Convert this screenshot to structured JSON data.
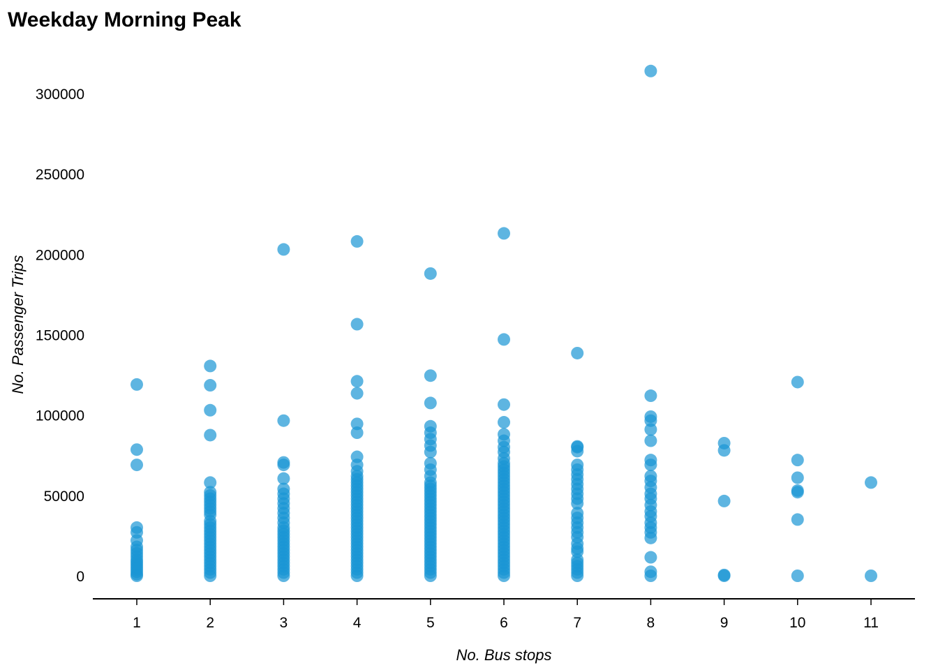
{
  "chart_data": {
    "type": "scatter",
    "title": "Weekday Morning Peak",
    "xlabel": "No. Bus stops",
    "ylabel": "No. Passenger Trips",
    "x_ticks": [
      1,
      2,
      3,
      4,
      5,
      6,
      7,
      8,
      9,
      10,
      11
    ],
    "y_ticks": [
      0,
      50000,
      100000,
      150000,
      200000,
      250000,
      300000
    ],
    "xlim": [
      0.4,
      11.6
    ],
    "ylim": [
      -14000,
      322000
    ],
    "grid": false,
    "point_color": "#1a96d4",
    "series": [
      {
        "points": [
          [
            1,
            0
          ],
          [
            1,
            1000
          ],
          [
            1,
            2500
          ],
          [
            1,
            4000
          ],
          [
            1,
            5500
          ],
          [
            1,
            7000
          ],
          [
            1,
            8500
          ],
          [
            1,
            10000
          ],
          [
            1,
            12000
          ],
          [
            1,
            14000
          ],
          [
            1,
            16000
          ],
          [
            1,
            18000
          ],
          [
            1,
            22000
          ],
          [
            1,
            27000
          ],
          [
            1,
            30000
          ],
          [
            1,
            69000
          ],
          [
            1,
            78500
          ],
          [
            1,
            119000
          ],
          [
            2,
            0
          ],
          [
            2,
            2000
          ],
          [
            2,
            4000
          ],
          [
            2,
            6000
          ],
          [
            2,
            8000
          ],
          [
            2,
            10000
          ],
          [
            2,
            12000
          ],
          [
            2,
            14000
          ],
          [
            2,
            16000
          ],
          [
            2,
            18000
          ],
          [
            2,
            20000
          ],
          [
            2,
            22000
          ],
          [
            2,
            24000
          ],
          [
            2,
            26000
          ],
          [
            2,
            28000
          ],
          [
            2,
            30000
          ],
          [
            2,
            32000
          ],
          [
            2,
            34000
          ],
          [
            2,
            38000
          ],
          [
            2,
            40000
          ],
          [
            2,
            42000
          ],
          [
            2,
            44000
          ],
          [
            2,
            46000
          ],
          [
            2,
            48000
          ],
          [
            2,
            50000
          ],
          [
            2,
            52000
          ],
          [
            2,
            58000
          ],
          [
            2,
            87500
          ],
          [
            2,
            103000
          ],
          [
            2,
            118500
          ],
          [
            2,
            130500
          ],
          [
            3,
            0
          ],
          [
            3,
            2000
          ],
          [
            3,
            4000
          ],
          [
            3,
            6000
          ],
          [
            3,
            8000
          ],
          [
            3,
            10000
          ],
          [
            3,
            12000
          ],
          [
            3,
            14000
          ],
          [
            3,
            16000
          ],
          [
            3,
            18000
          ],
          [
            3,
            20000
          ],
          [
            3,
            22000
          ],
          [
            3,
            24000
          ],
          [
            3,
            26000
          ],
          [
            3,
            28000
          ],
          [
            3,
            30000
          ],
          [
            3,
            33000
          ],
          [
            3,
            36000
          ],
          [
            3,
            39000
          ],
          [
            3,
            42000
          ],
          [
            3,
            45000
          ],
          [
            3,
            48000
          ],
          [
            3,
            51000
          ],
          [
            3,
            54000
          ],
          [
            3,
            60500
          ],
          [
            3,
            69000
          ],
          [
            3,
            70500
          ],
          [
            3,
            96500
          ],
          [
            3,
            203000
          ],
          [
            4,
            0
          ],
          [
            4,
            2000
          ],
          [
            4,
            4000
          ],
          [
            4,
            6000
          ],
          [
            4,
            8000
          ],
          [
            4,
            10000
          ],
          [
            4,
            12000
          ],
          [
            4,
            14000
          ],
          [
            4,
            16000
          ],
          [
            4,
            18000
          ],
          [
            4,
            20000
          ],
          [
            4,
            22000
          ],
          [
            4,
            24000
          ],
          [
            4,
            26000
          ],
          [
            4,
            28000
          ],
          [
            4,
            30000
          ],
          [
            4,
            32000
          ],
          [
            4,
            34000
          ],
          [
            4,
            36000
          ],
          [
            4,
            38000
          ],
          [
            4,
            40000
          ],
          [
            4,
            42000
          ],
          [
            4,
            44000
          ],
          [
            4,
            46000
          ],
          [
            4,
            48000
          ],
          [
            4,
            50000
          ],
          [
            4,
            52000
          ],
          [
            4,
            54000
          ],
          [
            4,
            56000
          ],
          [
            4,
            58000
          ],
          [
            4,
            60000
          ],
          [
            4,
            62000
          ],
          [
            4,
            65000
          ],
          [
            4,
            69000
          ],
          [
            4,
            74000
          ],
          [
            4,
            89000
          ],
          [
            4,
            94500
          ],
          [
            4,
            113500
          ],
          [
            4,
            121000
          ],
          [
            4,
            156500
          ],
          [
            4,
            208000
          ],
          [
            5,
            0
          ],
          [
            5,
            2000
          ],
          [
            5,
            4000
          ],
          [
            5,
            6000
          ],
          [
            5,
            8000
          ],
          [
            5,
            10000
          ],
          [
            5,
            12000
          ],
          [
            5,
            14000
          ],
          [
            5,
            16000
          ],
          [
            5,
            18000
          ],
          [
            5,
            20000
          ],
          [
            5,
            22000
          ],
          [
            5,
            24000
          ],
          [
            5,
            26000
          ],
          [
            5,
            28000
          ],
          [
            5,
            30000
          ],
          [
            5,
            32000
          ],
          [
            5,
            34000
          ],
          [
            5,
            36000
          ],
          [
            5,
            38000
          ],
          [
            5,
            40000
          ],
          [
            5,
            42000
          ],
          [
            5,
            44000
          ],
          [
            5,
            46000
          ],
          [
            5,
            48000
          ],
          [
            5,
            50000
          ],
          [
            5,
            52000
          ],
          [
            5,
            54000
          ],
          [
            5,
            56000
          ],
          [
            5,
            58000
          ],
          [
            5,
            62000
          ],
          [
            5,
            66000
          ],
          [
            5,
            70000
          ],
          [
            5,
            77000
          ],
          [
            5,
            81000
          ],
          [
            5,
            85000
          ],
          [
            5,
            89000
          ],
          [
            5,
            93000
          ],
          [
            5,
            107500
          ],
          [
            5,
            124500
          ],
          [
            5,
            188000
          ],
          [
            6,
            0
          ],
          [
            6,
            2000
          ],
          [
            6,
            4000
          ],
          [
            6,
            6000
          ],
          [
            6,
            8000
          ],
          [
            6,
            10000
          ],
          [
            6,
            12000
          ],
          [
            6,
            14000
          ],
          [
            6,
            16000
          ],
          [
            6,
            18000
          ],
          [
            6,
            20000
          ],
          [
            6,
            22000
          ],
          [
            6,
            24000
          ],
          [
            6,
            26000
          ],
          [
            6,
            28000
          ],
          [
            6,
            30000
          ],
          [
            6,
            32000
          ],
          [
            6,
            34000
          ],
          [
            6,
            36000
          ],
          [
            6,
            38000
          ],
          [
            6,
            40000
          ],
          [
            6,
            42000
          ],
          [
            6,
            44000
          ],
          [
            6,
            46000
          ],
          [
            6,
            48000
          ],
          [
            6,
            50000
          ],
          [
            6,
            52000
          ],
          [
            6,
            54000
          ],
          [
            6,
            56000
          ],
          [
            6,
            58000
          ],
          [
            6,
            60000
          ],
          [
            6,
            62000
          ],
          [
            6,
            64000
          ],
          [
            6,
            66000
          ],
          [
            6,
            68000
          ],
          [
            6,
            70000
          ],
          [
            6,
            73000
          ],
          [
            6,
            77000
          ],
          [
            6,
            80000
          ],
          [
            6,
            84000
          ],
          [
            6,
            88000
          ],
          [
            6,
            95500
          ],
          [
            6,
            106500
          ],
          [
            6,
            147000
          ],
          [
            6,
            213000
          ],
          [
            7,
            0
          ],
          [
            7,
            2000
          ],
          [
            7,
            4000
          ],
          [
            7,
            6000
          ],
          [
            7,
            8000
          ],
          [
            7,
            10000
          ],
          [
            7,
            15000
          ],
          [
            7,
            17000
          ],
          [
            7,
            20000
          ],
          [
            7,
            24000
          ],
          [
            7,
            27000
          ],
          [
            7,
            30000
          ],
          [
            7,
            33000
          ],
          [
            7,
            36000
          ],
          [
            7,
            39000
          ],
          [
            7,
            45000
          ],
          [
            7,
            48000
          ],
          [
            7,
            51000
          ],
          [
            7,
            54000
          ],
          [
            7,
            57000
          ],
          [
            7,
            60000
          ],
          [
            7,
            63000
          ],
          [
            7,
            66000
          ],
          [
            7,
            69000
          ],
          [
            7,
            77500
          ],
          [
            7,
            80000
          ],
          [
            7,
            80500
          ],
          [
            7,
            138500
          ],
          [
            8,
            0
          ],
          [
            8,
            2500
          ],
          [
            8,
            11500
          ],
          [
            8,
            23500
          ],
          [
            8,
            27000
          ],
          [
            8,
            30000
          ],
          [
            8,
            33000
          ],
          [
            8,
            37000
          ],
          [
            8,
            40000
          ],
          [
            8,
            44000
          ],
          [
            8,
            48000
          ],
          [
            8,
            51000
          ],
          [
            8,
            55000
          ],
          [
            8,
            59000
          ],
          [
            8,
            62000
          ],
          [
            8,
            69000
          ],
          [
            8,
            72000
          ],
          [
            8,
            84000
          ],
          [
            8,
            91000
          ],
          [
            8,
            96500
          ],
          [
            8,
            99000
          ],
          [
            8,
            112000
          ],
          [
            8,
            314000
          ],
          [
            9,
            0
          ],
          [
            9,
            500
          ],
          [
            9,
            46500
          ],
          [
            9,
            78000
          ],
          [
            9,
            82500
          ],
          [
            10,
            0
          ],
          [
            10,
            35000
          ],
          [
            10,
            52000
          ],
          [
            10,
            53000
          ],
          [
            10,
            61000
          ],
          [
            10,
            72000
          ],
          [
            10,
            120500
          ],
          [
            11,
            0
          ],
          [
            11,
            58000
          ]
        ]
      }
    ]
  }
}
